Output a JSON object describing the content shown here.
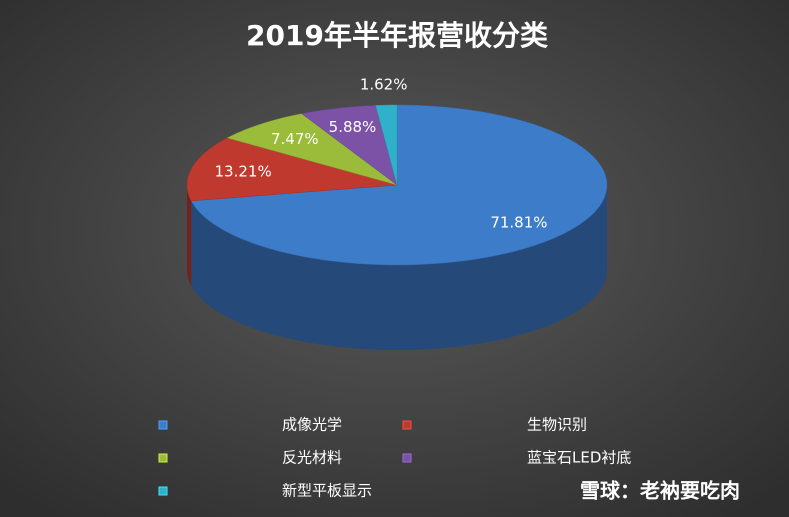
{
  "chart_data": {
    "type": "pie",
    "title": "2019年半年报营收分类",
    "categories": [
      "成像光学",
      "生物识别",
      "反光材料",
      "蓝宝石LED衬底",
      "新型平板显示"
    ],
    "values": [
      71.81,
      13.21,
      7.47,
      5.88,
      1.62
    ],
    "value_labels": [
      "71.81%",
      "13.21%",
      "7.47%",
      "5.88%",
      "1.62%"
    ],
    "colors": [
      "#3d7cc9",
      "#c0392f",
      "#9bbb3b",
      "#7b52a6",
      "#2fb2c9"
    ],
    "legend": "bottom"
  },
  "watermark": "雪球：老衲要吃肉"
}
